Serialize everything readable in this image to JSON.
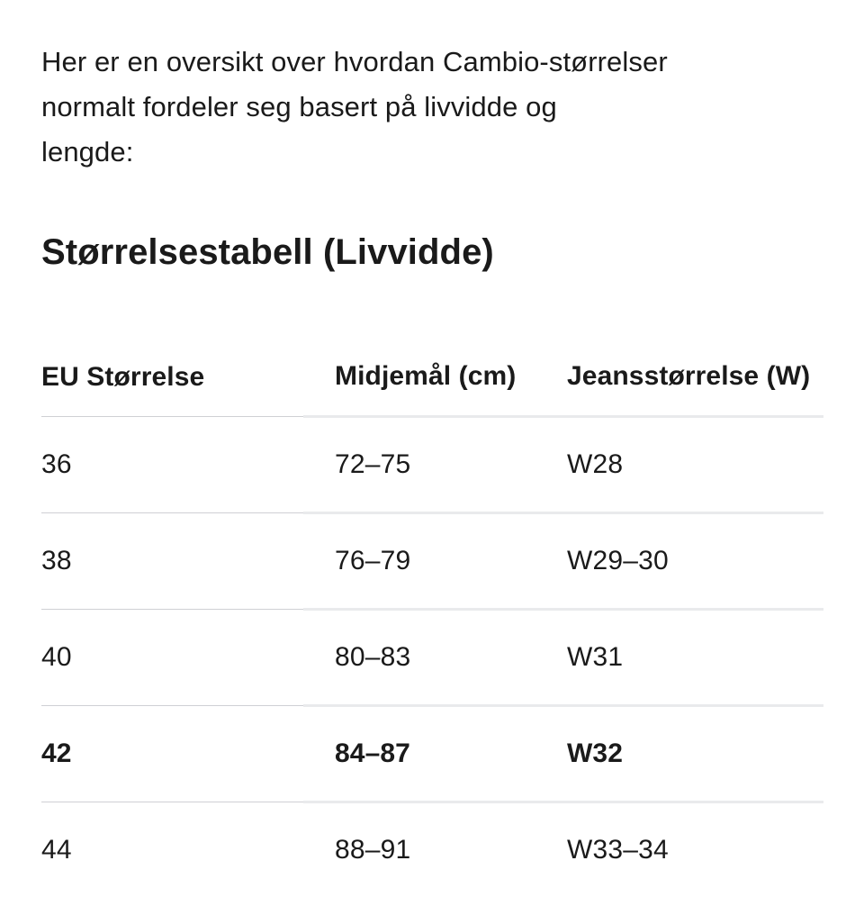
{
  "intro": {
    "lines": [
      "Her er en oversikt over hvordan Cambio-størrelser",
      "normalt fordeler seg basert på livvidde og",
      "lengde:"
    ]
  },
  "section": {
    "title": "Størrelsestabell (Livvidde)"
  },
  "size_table": {
    "columns": {
      "eu": "EU Størrelse",
      "waist": "Midjemål (cm)",
      "jeans": "Jeansstørrelse (W)"
    },
    "rows": [
      {
        "eu": "36",
        "waist": "72–75",
        "jeans": "W28",
        "emphasized": false
      },
      {
        "eu": "38",
        "waist": "76–79",
        "jeans": "W29–30",
        "emphasized": false
      },
      {
        "eu": "40",
        "waist": "80–83",
        "jeans": "W31",
        "emphasized": false
      },
      {
        "eu": "42",
        "waist": "84–87",
        "jeans": "W32",
        "emphasized": true
      },
      {
        "eu": "44",
        "waist": "88–91",
        "jeans": "W33–34",
        "emphasized": false
      }
    ]
  },
  "colors": {
    "background": "#ffffff",
    "text": "#1a1a1a",
    "divider_thin": "#cfd0d4",
    "divider_thick": "#e9eaec"
  }
}
